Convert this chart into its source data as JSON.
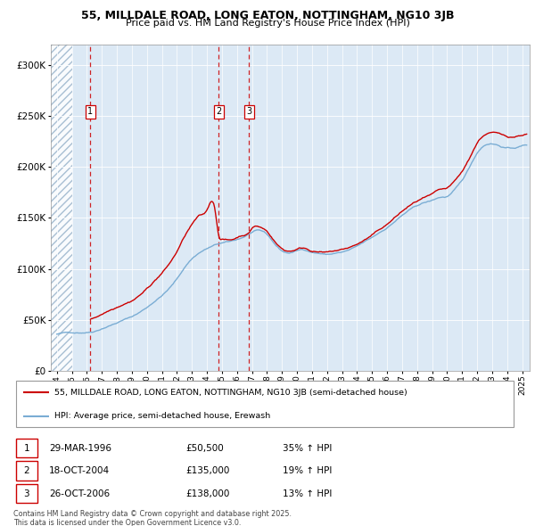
{
  "title_line1": "55, MILLDALE ROAD, LONG EATON, NOTTINGHAM, NG10 3JB",
  "title_line2": "Price paid vs. HM Land Registry's House Price Index (HPI)",
  "legend_label1": "55, MILLDALE ROAD, LONG EATON, NOTTINGHAM, NG10 3JB (semi-detached house)",
  "legend_label2": "HPI: Average price, semi-detached house, Erewash",
  "transactions": [
    {
      "num": 1,
      "date_str": "29-MAR-1996",
      "date_x": 1996.24,
      "price": 50500,
      "hpi_pct": "35% ↑ HPI"
    },
    {
      "num": 2,
      "date_str": "18-OCT-2004",
      "date_x": 2004.79,
      "price": 135000,
      "hpi_pct": "19% ↑ HPI"
    },
    {
      "num": 3,
      "date_str": "26-OCT-2006",
      "date_x": 2006.81,
      "price": 138000,
      "hpi_pct": "13% ↑ HPI"
    }
  ],
  "price_color": "#cc0000",
  "hpi_color": "#7aadd4",
  "background_color": "#dce9f5",
  "ylim": [
    0,
    320000
  ],
  "yticks": [
    0,
    50000,
    100000,
    150000,
    200000,
    250000,
    300000
  ],
  "xlim_start": 1993.6,
  "xlim_end": 2025.5,
  "hpi_points": [
    [
      1994.0,
      36000
    ],
    [
      1995.0,
      37500
    ],
    [
      1996.0,
      38500
    ],
    [
      1996.5,
      40000
    ],
    [
      1997.0,
      43000
    ],
    [
      1997.5,
      46000
    ],
    [
      1998.0,
      49000
    ],
    [
      1998.5,
      52000
    ],
    [
      1999.0,
      55000
    ],
    [
      1999.5,
      59000
    ],
    [
      2000.0,
      64000
    ],
    [
      2000.5,
      70000
    ],
    [
      2001.0,
      76000
    ],
    [
      2001.5,
      83000
    ],
    [
      2002.0,
      92000
    ],
    [
      2002.5,
      103000
    ],
    [
      2003.0,
      112000
    ],
    [
      2003.5,
      118000
    ],
    [
      2004.0,
      122000
    ],
    [
      2004.5,
      125000
    ],
    [
      2005.0,
      127000
    ],
    [
      2005.5,
      128000
    ],
    [
      2006.0,
      130000
    ],
    [
      2006.5,
      133000
    ],
    [
      2007.0,
      137000
    ],
    [
      2007.5,
      138000
    ],
    [
      2008.0,
      134000
    ],
    [
      2008.5,
      125000
    ],
    [
      2009.0,
      118000
    ],
    [
      2009.5,
      116000
    ],
    [
      2010.0,
      118000
    ],
    [
      2010.5,
      119000
    ],
    [
      2011.0,
      117000
    ],
    [
      2011.5,
      116000
    ],
    [
      2012.0,
      115000
    ],
    [
      2012.5,
      116000
    ],
    [
      2013.0,
      117000
    ],
    [
      2013.5,
      119000
    ],
    [
      2014.0,
      122000
    ],
    [
      2014.5,
      126000
    ],
    [
      2015.0,
      130000
    ],
    [
      2015.5,
      135000
    ],
    [
      2016.0,
      140000
    ],
    [
      2016.5,
      146000
    ],
    [
      2017.0,
      152000
    ],
    [
      2017.5,
      157000
    ],
    [
      2018.0,
      161000
    ],
    [
      2018.5,
      164000
    ],
    [
      2019.0,
      166000
    ],
    [
      2019.5,
      169000
    ],
    [
      2020.0,
      170000
    ],
    [
      2020.5,
      176000
    ],
    [
      2021.0,
      185000
    ],
    [
      2021.5,
      198000
    ],
    [
      2022.0,
      212000
    ],
    [
      2022.5,
      220000
    ],
    [
      2023.0,
      222000
    ],
    [
      2023.5,
      220000
    ],
    [
      2024.0,
      218000
    ],
    [
      2024.5,
      218000
    ],
    [
      2025.0,
      220000
    ],
    [
      2025.3,
      221000
    ]
  ],
  "price_points": [
    [
      1996.24,
      50500
    ],
    [
      1996.5,
      52000
    ],
    [
      1997.0,
      56000
    ],
    [
      1997.5,
      60000
    ],
    [
      1998.0,
      64000
    ],
    [
      1998.5,
      68000
    ],
    [
      1999.0,
      71500
    ],
    [
      1999.5,
      76800
    ],
    [
      2000.0,
      83200
    ],
    [
      2000.5,
      91000
    ],
    [
      2001.0,
      98800
    ],
    [
      2001.5,
      107900
    ],
    [
      2002.0,
      119600
    ],
    [
      2002.5,
      133900
    ],
    [
      2003.0,
      145600
    ],
    [
      2003.5,
      153400
    ],
    [
      2004.0,
      158600
    ],
    [
      2004.5,
      162500
    ],
    [
      2004.79,
      135000
    ],
    [
      2005.0,
      131000
    ],
    [
      2005.5,
      130000
    ],
    [
      2006.0,
      132600
    ],
    [
      2006.5,
      135700
    ],
    [
      2006.81,
      138000
    ],
    [
      2007.0,
      142200
    ],
    [
      2007.5,
      143400
    ],
    [
      2008.0,
      139200
    ],
    [
      2008.5,
      129900
    ],
    [
      2009.0,
      122500
    ],
    [
      2009.5,
      120400
    ],
    [
      2010.0,
      122500
    ],
    [
      2010.5,
      123600
    ],
    [
      2011.0,
      121500
    ],
    [
      2011.5,
      120400
    ],
    [
      2012.0,
      119400
    ],
    [
      2012.5,
      120400
    ],
    [
      2013.0,
      121500
    ],
    [
      2013.5,
      123600
    ],
    [
      2014.0,
      126600
    ],
    [
      2014.5,
      130700
    ],
    [
      2015.0,
      134900
    ],
    [
      2015.5,
      140100
    ],
    [
      2016.0,
      145200
    ],
    [
      2016.5,
      151400
    ],
    [
      2017.0,
      157600
    ],
    [
      2017.5,
      162800
    ],
    [
      2018.0,
      167000
    ],
    [
      2018.5,
      170100
    ],
    [
      2019.0,
      172200
    ],
    [
      2019.5,
      175400
    ],
    [
      2020.0,
      176400
    ],
    [
      2020.5,
      182600
    ],
    [
      2021.0,
      191800
    ],
    [
      2021.5,
      205000
    ],
    [
      2022.0,
      219800
    ],
    [
      2022.5,
      228000
    ],
    [
      2023.0,
      230000
    ],
    [
      2023.5,
      228000
    ],
    [
      2024.0,
      225900
    ],
    [
      2024.5,
      226000
    ],
    [
      2025.0,
      228000
    ],
    [
      2025.3,
      229000
    ]
  ]
}
